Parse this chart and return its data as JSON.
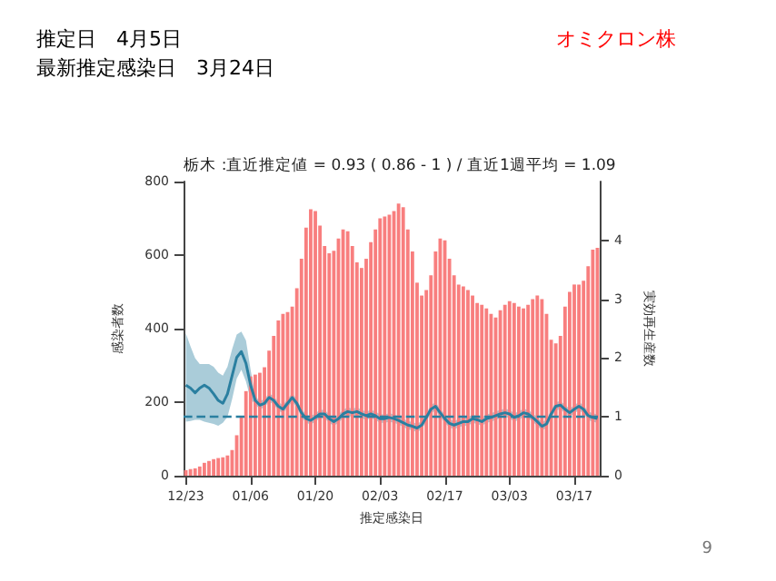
{
  "chart_data": {
    "type": "bar",
    "title": "栃木 :直近推定値 = 0.93 ( 0.86 - 1 ) / 直近1週平均 = 1.09",
    "xlabel": "推定感染日",
    "ylabel": "感染者数",
    "y2label": "実効再生産数",
    "annotations": [
      "推定日　4月5日",
      "最新推定感染日　3月24日",
      "オミクロン株",
      "9"
    ],
    "categories": [
      "12/23",
      null,
      null,
      null,
      null,
      null,
      null,
      null,
      null,
      null,
      null,
      null,
      null,
      null,
      "01/06",
      null,
      null,
      null,
      null,
      null,
      null,
      null,
      null,
      null,
      null,
      null,
      null,
      null,
      "01/20",
      null,
      null,
      null,
      null,
      null,
      null,
      null,
      null,
      null,
      null,
      null,
      null,
      null,
      "02/03",
      null,
      null,
      null,
      null,
      null,
      null,
      null,
      null,
      null,
      null,
      null,
      null,
      null,
      "02/17",
      null,
      null,
      null,
      null,
      null,
      null,
      null,
      null,
      null,
      null,
      null,
      null,
      null,
      "03/03",
      null,
      null,
      null,
      null,
      null,
      null,
      null,
      null,
      null,
      null,
      null,
      null,
      null,
      "03/17",
      null,
      null,
      null,
      null,
      null
    ],
    "series": [
      {
        "color": "#f87e7e",
        "values": [
          15,
          18,
          20,
          25,
          35,
          40,
          45,
          48,
          50,
          55,
          70,
          110,
          160,
          230,
          270,
          275,
          280,
          295,
          340,
          380,
          422,
          440,
          445,
          460,
          510,
          590,
          675,
          725,
          720,
          680,
          625,
          605,
          612,
          645,
          670,
          665,
          625,
          580,
          565,
          590,
          635,
          670,
          700,
          705,
          710,
          720,
          740,
          730,
          670,
          610,
          525,
          490,
          505,
          545,
          610,
          645,
          640,
          590,
          545,
          520,
          515,
          505,
          490,
          470,
          465,
          455,
          440,
          430,
          450,
          465,
          475,
          470,
          460,
          455,
          465,
          480,
          490,
          480,
          440,
          370,
          360,
          380,
          460,
          500,
          520,
          520,
          530,
          570,
          615,
          620
        ]
      },
      {
        "type": "line",
        "axis": "y2",
        "color": "#2a7fa0",
        "line_style": "solid",
        "values": [
          1.54,
          1.49,
          1.41,
          1.49,
          1.54,
          1.49,
          1.39,
          1.28,
          1.23,
          1.39,
          1.7,
          2.01,
          2.11,
          1.91,
          1.54,
          1.28,
          1.2,
          1.23,
          1.33,
          1.28,
          1.18,
          1.13,
          1.23,
          1.33,
          1.23,
          1.07,
          0.97,
          0.94,
          0.99,
          1.05,
          1.05,
          0.97,
          0.92,
          0.97,
          1.05,
          1.09,
          1.07,
          1.09,
          1.05,
          1.02,
          1.05,
          1.02,
          0.97,
          0.97,
          0.99,
          0.97,
          0.94,
          0.9,
          0.86,
          0.84,
          0.81,
          0.86,
          0.99,
          1.13,
          1.18,
          1.07,
          0.97,
          0.89,
          0.86,
          0.89,
          0.92,
          0.92,
          0.97,
          0.95,
          0.92,
          0.97,
          0.99,
          1.02,
          1.05,
          1.07,
          1.05,
          0.99,
          1.02,
          1.07,
          1.05,
          0.99,
          0.92,
          0.84,
          0.88,
          1.05,
          1.18,
          1.2,
          1.13,
          1.07,
          1.13,
          1.18,
          1.13,
          1.02,
          0.99,
          0.97
        ],
        "lower": [
          0.92,
          0.93,
          0.95,
          0.95,
          0.92,
          0.9,
          0.88,
          0.85,
          0.9,
          1.0,
          1.3,
          1.65,
          1.8,
          1.6,
          1.3,
          1.21,
          1.13,
          1.16,
          1.26,
          1.21,
          1.11,
          1.06,
          1.16,
          1.26,
          1.16,
          1.0,
          0.9,
          0.87,
          0.92,
          0.98,
          0.98,
          0.9,
          0.85,
          0.9,
          0.98,
          1.02,
          1.0,
          1.02,
          0.98,
          0.95,
          0.98,
          0.95,
          0.9,
          0.9,
          0.92,
          0.9,
          0.87,
          0.83,
          0.79,
          0.77,
          0.74,
          0.79,
          0.92,
          1.06,
          1.11,
          1.0,
          0.9,
          0.82,
          0.79,
          0.82,
          0.85,
          0.85,
          0.9,
          0.88,
          0.85,
          0.9,
          0.92,
          0.95,
          0.98,
          1.0,
          0.98,
          0.92,
          0.95,
          1.0,
          0.98,
          0.92,
          0.85,
          0.77,
          0.81,
          0.98,
          1.11,
          1.13,
          1.06,
          1.0,
          1.06,
          1.11,
          1.06,
          0.95,
          0.92,
          0.9
        ],
        "upper": [
          2.42,
          2.2,
          2.0,
          1.9,
          1.9,
          1.9,
          1.85,
          1.75,
          1.7,
          1.85,
          2.15,
          2.4,
          2.45,
          2.3,
          1.8,
          1.35,
          1.27,
          1.3,
          1.4,
          1.35,
          1.25,
          1.2,
          1.3,
          1.4,
          1.3,
          1.14,
          1.04,
          1.01,
          1.06,
          1.12,
          1.12,
          1.04,
          0.99,
          1.04,
          1.12,
          1.16,
          1.14,
          1.16,
          1.12,
          1.09,
          1.12,
          1.09,
          1.04,
          1.04,
          1.06,
          1.04,
          1.01,
          0.97,
          0.93,
          0.91,
          0.88,
          0.93,
          1.06,
          1.2,
          1.25,
          1.14,
          1.04,
          0.96,
          0.93,
          0.96,
          0.99,
          0.99,
          1.04,
          1.02,
          0.99,
          1.04,
          1.06,
          1.09,
          1.12,
          1.14,
          1.12,
          1.06,
          1.09,
          1.14,
          1.12,
          1.06,
          0.99,
          0.91,
          0.95,
          1.12,
          1.25,
          1.27,
          1.2,
          1.14,
          1.2,
          1.25,
          1.2,
          1.09,
          1.06,
          1.04
        ]
      }
    ],
    "ylim": [
      0,
      800
    ],
    "yticks": [
      0,
      200,
      400,
      600,
      800
    ],
    "y2lim": [
      0,
      5
    ],
    "y2ticks": [
      0,
      1,
      2,
      3,
      4
    ],
    "ref_lines": [
      {
        "axis": "y2",
        "value": 1,
        "color": "#2a7fa0",
        "line_style": "dashed"
      }
    ],
    "grid": false
  }
}
